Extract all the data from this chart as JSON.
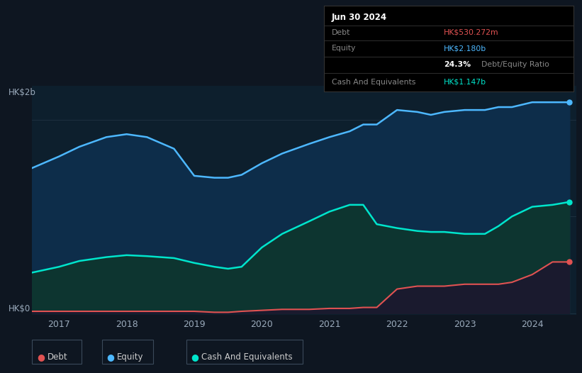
{
  "bg_color": "#0e1621",
  "plot_bg_color": "#0d1f2d",
  "title_box": {
    "date": "Jun 30 2024",
    "debt_label": "Debt",
    "debt_value": "HK$530.272m",
    "equity_label": "Equity",
    "equity_value": "HK$2.180b",
    "ratio_value": "24.3%",
    "ratio_label": "Debt/Equity Ratio",
    "cash_label": "Cash And Equivalents",
    "cash_value": "HK$1.147b"
  },
  "ylabel_top": "HK$2b",
  "ylabel_bottom": "HK$0",
  "x_ticks": [
    "2017",
    "2018",
    "2019",
    "2020",
    "2021",
    "2022",
    "2023",
    "2024"
  ],
  "legend": [
    {
      "label": "Debt",
      "color": "#e05252"
    },
    {
      "label": "Equity",
      "color": "#4db8ff"
    },
    {
      "label": "Cash And Equivalents",
      "color": "#00e5cc"
    }
  ],
  "equity_color": "#4db8ff",
  "equity_fill": "#0d2d4a",
  "debt_color": "#e05252",
  "cash_color": "#00e5cc",
  "cash_fill": "#0d3530",
  "grid_color": "#1e3040",
  "years": [
    2016.6,
    2017.0,
    2017.3,
    2017.7,
    2018.0,
    2018.3,
    2018.7,
    2019.0,
    2019.3,
    2019.5,
    2019.7,
    2020.0,
    2020.3,
    2020.7,
    2021.0,
    2021.3,
    2021.5,
    2021.7,
    2022.0,
    2022.3,
    2022.5,
    2022.7,
    2023.0,
    2023.3,
    2023.5,
    2023.7,
    2024.0,
    2024.3,
    2024.55
  ],
  "equity": [
    1.5,
    1.62,
    1.72,
    1.82,
    1.85,
    1.82,
    1.7,
    1.42,
    1.4,
    1.4,
    1.43,
    1.55,
    1.65,
    1.75,
    1.82,
    1.88,
    1.95,
    1.95,
    2.1,
    2.08,
    2.05,
    2.08,
    2.1,
    2.1,
    2.13,
    2.13,
    2.18,
    2.18,
    2.18
  ],
  "cash": [
    0.42,
    0.48,
    0.54,
    0.58,
    0.6,
    0.59,
    0.57,
    0.52,
    0.48,
    0.46,
    0.48,
    0.68,
    0.82,
    0.95,
    1.05,
    1.12,
    1.12,
    0.92,
    0.88,
    0.85,
    0.84,
    0.84,
    0.82,
    0.82,
    0.9,
    1.0,
    1.1,
    1.12,
    1.15
  ],
  "debt": [
    0.02,
    0.02,
    0.02,
    0.02,
    0.02,
    0.02,
    0.02,
    0.02,
    0.01,
    0.01,
    0.02,
    0.03,
    0.04,
    0.04,
    0.05,
    0.05,
    0.06,
    0.06,
    0.25,
    0.28,
    0.28,
    0.28,
    0.3,
    0.3,
    0.3,
    0.32,
    0.4,
    0.53,
    0.53
  ]
}
